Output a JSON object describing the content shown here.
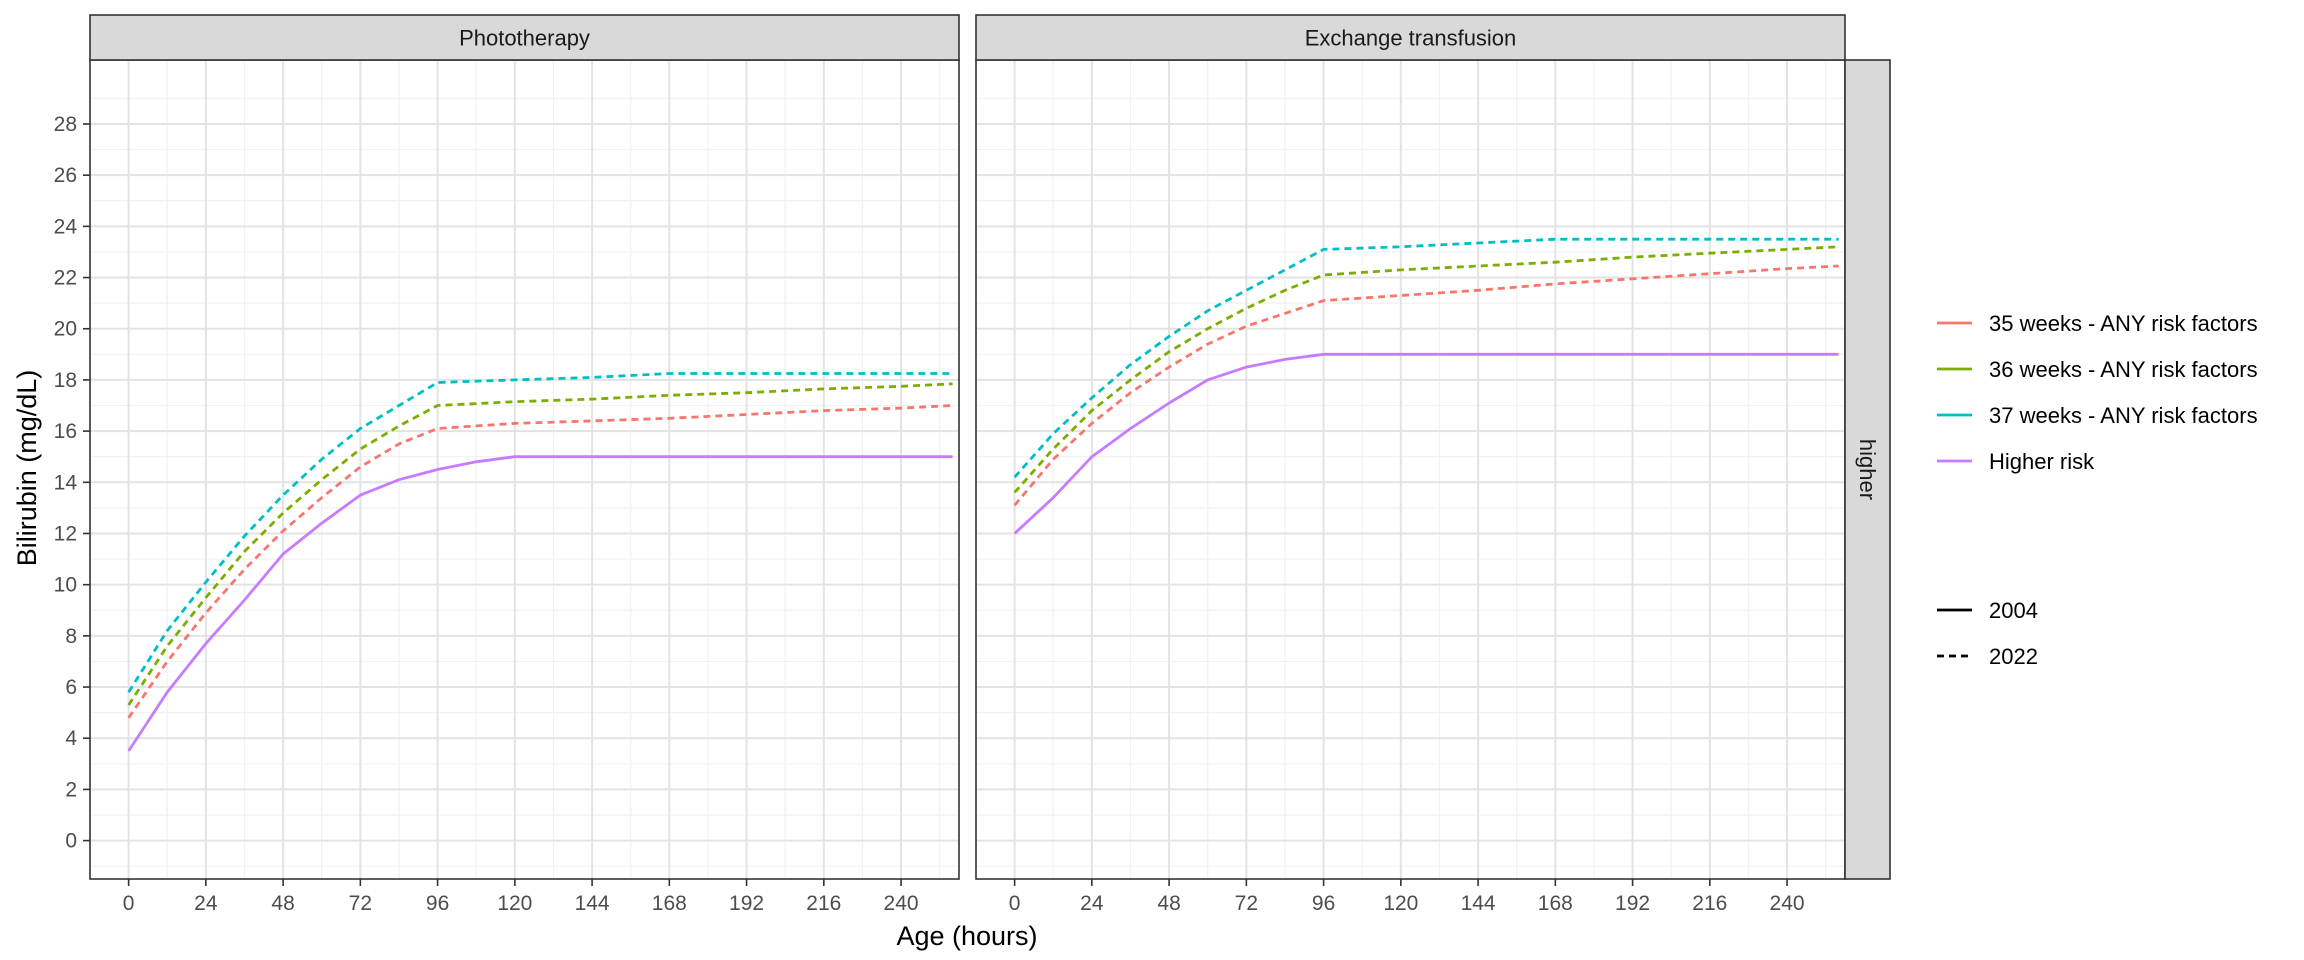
{
  "chart_data": {
    "type": "line",
    "xlabel": "Age (hours)",
    "ylabel": "Bilirubin (mg/dL)",
    "xlim": [
      -12,
      258
    ],
    "ylim": [
      -1.5,
      30.5
    ],
    "x_ticks": [
      0,
      24,
      48,
      72,
      96,
      120,
      144,
      168,
      192,
      216,
      240
    ],
    "y_ticks": [
      0,
      2,
      4,
      6,
      8,
      10,
      12,
      14,
      16,
      18,
      20,
      22,
      24,
      26,
      28
    ],
    "grid": true,
    "theme": "bw",
    "row_strip": "higher",
    "legend_position": "right",
    "colors": {
      "35 weeks - ANY risk factors": "#F8766D",
      "36 weeks - ANY risk factors": "#7CAE00",
      "37 weeks - ANY risk factors": "#00BFC4",
      "Higher risk": "#C77CFF"
    },
    "linetype_legend": [
      {
        "label": "2004",
        "dash": "solid"
      },
      {
        "label": "2022",
        "dash": "dashed"
      }
    ],
    "panels": [
      {
        "title": "Phototherapy",
        "series": [
          {
            "name": "35 weeks - ANY risk factors",
            "linetype": "2022",
            "x": [
              0,
              12,
              24,
              36,
              48,
              60,
              72,
              84,
              96,
              120,
              144,
              168,
              192,
              216,
              240,
              256
            ],
            "y": [
              4.8,
              7.0,
              8.9,
              10.6,
              12.1,
              13.4,
              14.6,
              15.5,
              16.1,
              16.3,
              16.4,
              16.5,
              16.65,
              16.8,
              16.9,
              17.0
            ]
          },
          {
            "name": "36 weeks - ANY risk factors",
            "linetype": "2022",
            "x": [
              0,
              12,
              24,
              36,
              48,
              60,
              72,
              84,
              96,
              120,
              144,
              168,
              192,
              216,
              240,
              256
            ],
            "y": [
              5.3,
              7.6,
              9.5,
              11.3,
              12.8,
              14.1,
              15.3,
              16.2,
              17.0,
              17.15,
              17.25,
              17.4,
              17.5,
              17.65,
              17.75,
              17.85
            ]
          },
          {
            "name": "37 weeks - ANY risk factors",
            "linetype": "2022",
            "x": [
              0,
              12,
              24,
              36,
              48,
              60,
              72,
              84,
              96,
              120,
              144,
              168,
              192,
              216,
              240,
              256
            ],
            "y": [
              5.8,
              8.2,
              10.1,
              11.9,
              13.5,
              14.9,
              16.1,
              17.0,
              17.9,
              18.0,
              18.1,
              18.25,
              18.25,
              18.25,
              18.25,
              18.25
            ]
          },
          {
            "name": "Higher risk",
            "linetype": "2004",
            "x": [
              0,
              12,
              24,
              36,
              48,
              60,
              72,
              84,
              96,
              108,
              120,
              144,
              168,
              192,
              216,
              240,
              256
            ],
            "y": [
              3.5,
              5.8,
              7.7,
              9.4,
              11.2,
              12.4,
              13.5,
              14.1,
              14.5,
              14.8,
              15.0,
              15.0,
              15.0,
              15.0,
              15.0,
              15.0,
              15.0
            ]
          }
        ]
      },
      {
        "title": "Exchange transfusion",
        "series": [
          {
            "name": "35 weeks - ANY risk factors",
            "linetype": "2022",
            "x": [
              0,
              12,
              24,
              36,
              48,
              60,
              72,
              84,
              96,
              120,
              144,
              168,
              192,
              216,
              240,
              256
            ],
            "y": [
              13.1,
              14.9,
              16.3,
              17.5,
              18.5,
              19.4,
              20.1,
              20.6,
              21.1,
              21.3,
              21.5,
              21.75,
              21.95,
              22.15,
              22.35,
              22.45
            ]
          },
          {
            "name": "36 weeks - ANY risk factors",
            "linetype": "2022",
            "x": [
              0,
              12,
              24,
              36,
              48,
              60,
              72,
              84,
              96,
              120,
              144,
              168,
              192,
              216,
              240,
              256
            ],
            "y": [
              13.6,
              15.3,
              16.8,
              18.0,
              19.1,
              20.0,
              20.8,
              21.5,
              22.1,
              22.3,
              22.45,
              22.6,
              22.8,
              22.95,
              23.1,
              23.2
            ]
          },
          {
            "name": "37 weeks - ANY risk factors",
            "linetype": "2022",
            "x": [
              0,
              12,
              24,
              36,
              48,
              60,
              72,
              84,
              96,
              120,
              144,
              168,
              192,
              216,
              240,
              256
            ],
            "y": [
              14.2,
              15.9,
              17.3,
              18.6,
              19.7,
              20.7,
              21.5,
              22.3,
              23.1,
              23.2,
              23.35,
              23.5,
              23.5,
              23.5,
              23.5,
              23.5
            ]
          },
          {
            "name": "Higher risk",
            "linetype": "2004",
            "x": [
              0,
              12,
              24,
              36,
              48,
              60,
              72,
              84,
              96,
              120,
              144,
              168,
              192,
              216,
              240,
              256
            ],
            "y": [
              12.0,
              13.4,
              15.0,
              16.1,
              17.1,
              18.0,
              18.5,
              18.8,
              19.0,
              19.0,
              19.0,
              19.0,
              19.0,
              19.0,
              19.0,
              19.0
            ]
          }
        ]
      }
    ]
  }
}
